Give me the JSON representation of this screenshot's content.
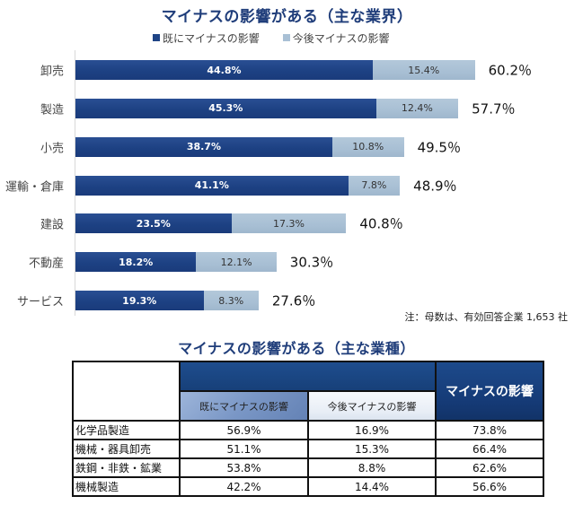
{
  "chart_data": {
    "type": "bar",
    "orientation": "horizontal",
    "stacked": true,
    "title": "マイナスの影響がある（主な業界）",
    "xlabel": "",
    "ylabel": "",
    "xlim": [
      0,
      70
    ],
    "grid": false,
    "legend_position": "top",
    "categories": [
      "卸売",
      "製造",
      "小売",
      "運輸・倉庫",
      "建設",
      "不動産",
      "サービス"
    ],
    "series": [
      {
        "name": "既にマイナスの影響",
        "color": "#1f4486",
        "values": [
          44.8,
          45.3,
          38.7,
          41.1,
          23.5,
          18.2,
          19.3
        ],
        "labels": [
          "44.8%",
          "45.3%",
          "38.7%",
          "41.1%",
          "23.5%",
          "18.2%",
          "19.3%"
        ]
      },
      {
        "name": "今後マイナスの影響",
        "color": "#a9c0d5",
        "values": [
          15.4,
          12.4,
          10.8,
          7.8,
          17.3,
          12.1,
          8.3
        ],
        "labels": [
          "15.4%",
          "12.4%",
          "10.8%",
          "7.8%",
          "17.3%",
          "12.1%",
          "8.3%"
        ]
      }
    ],
    "totals": [
      60.2,
      57.7,
      49.5,
      48.9,
      40.8,
      30.3,
      27.6
    ],
    "total_labels": [
      "60.2％",
      "57.7％",
      "49.5％",
      "48.9％",
      "40.8％",
      "30.3％",
      "27.6％"
    ],
    "note": "注：母数は、有効回答企業 1,653 社"
  },
  "table": {
    "title": "マイナスの影響がある（主な業種）",
    "header_total": "マイナスの影響",
    "columns": [
      "既にマイナスの影響",
      "今後マイナスの影響"
    ],
    "rows": [
      {
        "industry": "化学品製造",
        "already": "56.9%",
        "future": "16.9%",
        "total": "73.8%"
      },
      {
        "industry": "機械・器具卸売",
        "already": "51.1%",
        "future": "15.3%",
        "total": "66.4%"
      },
      {
        "industry": "鉄鋼・非鉄・鉱業",
        "already": "53.8%",
        "future": "8.8%",
        "total": "62.6%"
      },
      {
        "industry": "機械製造",
        "already": "42.2%",
        "future": "14.4%",
        "total": "56.6%"
      }
    ]
  }
}
